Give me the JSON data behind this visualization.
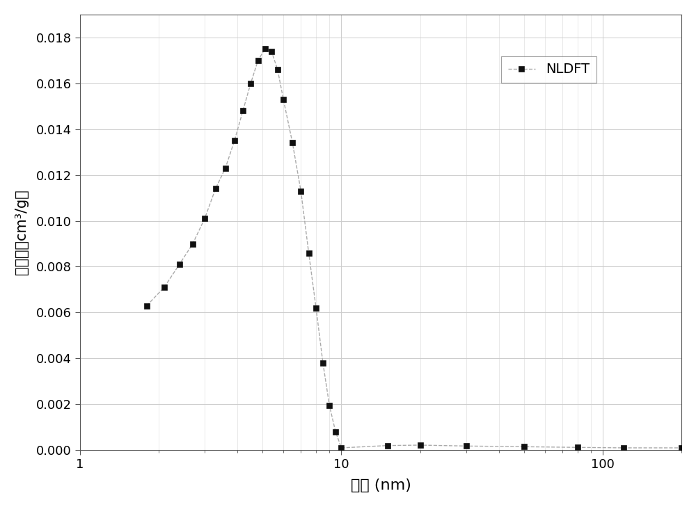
{
  "x": [
    1.8,
    2.1,
    2.4,
    2.7,
    3.0,
    3.3,
    3.6,
    3.9,
    4.2,
    4.5,
    4.8,
    5.1,
    5.4,
    5.7,
    6.0,
    6.5,
    7.0,
    7.5,
    8.0,
    8.5,
    9.0,
    9.5,
    10.0,
    15.0,
    20.0,
    30.0,
    50.0,
    80.0,
    120.0,
    200.0
  ],
  "y": [
    0.0063,
    0.0071,
    0.0081,
    0.009,
    0.0101,
    0.0114,
    0.0123,
    0.0135,
    0.0148,
    0.016,
    0.017,
    0.0175,
    0.0174,
    0.0166,
    0.0153,
    0.0134,
    0.0113,
    0.0086,
    0.0062,
    0.0038,
    0.00195,
    0.0008,
    0.0001,
    0.0002,
    0.00022,
    0.00018,
    0.00015,
    0.00012,
    0.0001,
    0.0001
  ],
  "line_color": "#aaaaaa",
  "marker_color": "#111111",
  "marker": "s",
  "marker_size": 6,
  "line_style": "--",
  "legend_label": "NLDFT",
  "xlabel": "孔径 (nm)",
  "ylabel": "孔体积（cm³/g）",
  "xlim_log": [
    1,
    200
  ],
  "ylim": [
    0,
    0.019
  ],
  "yticks": [
    0.0,
    0.002,
    0.004,
    0.006,
    0.008,
    0.01,
    0.012,
    0.014,
    0.016,
    0.018
  ],
  "background_color": "#ffffff",
  "plot_bg_color": "#ffffff",
  "grid_color_major": "#cccccc",
  "grid_color_minor": "#e0e0e0",
  "xlabel_fontsize": 16,
  "ylabel_fontsize": 15,
  "tick_fontsize": 13,
  "legend_fontsize": 14,
  "fig_width": 10.0,
  "fig_height": 7.29
}
